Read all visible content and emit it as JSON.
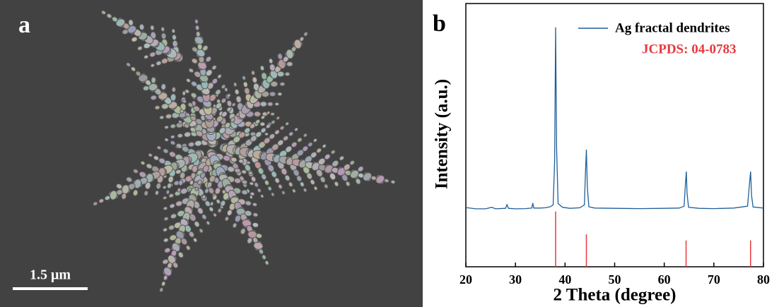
{
  "panel_a": {
    "label": "a",
    "scale_bar": "1.5 μm"
  },
  "chart_data": {
    "type": "line",
    "panel_label": "b",
    "xlabel": "2 Theta (degree)",
    "ylabel": "Intensity (a.u.)",
    "xlim": [
      20,
      80
    ],
    "xticks": [
      20,
      30,
      40,
      50,
      60,
      70,
      80
    ],
    "ylim": [
      0,
      100
    ],
    "legend": "top-right",
    "series": [
      {
        "name": "Ag fractal dendrites",
        "color": "#1f5f99",
        "x": [
          20,
          22,
          24,
          25.2,
          26,
          28,
          28.3,
          28.6,
          30,
          32,
          33.3,
          33.5,
          33.7,
          35,
          36,
          37,
          37.6,
          37.9,
          38.1,
          38.3,
          38.6,
          39.5,
          41,
          43,
          43.9,
          44.1,
          44.3,
          44.5,
          44.8,
          46,
          50,
          55,
          60,
          63,
          64,
          64.3,
          64.45,
          64.6,
          64.9,
          67,
          70,
          74,
          76.8,
          77.2,
          77.4,
          77.6,
          77.9,
          80
        ],
        "values": [
          22.5,
          22,
          22,
          22.6,
          22,
          22.2,
          23.6,
          22.2,
          22,
          22.1,
          22.3,
          24.2,
          22.3,
          22.3,
          22.4,
          22.8,
          23.5,
          40,
          91,
          45,
          24,
          22.6,
          22.2,
          22.4,
          23.5,
          35,
          44.5,
          30,
          22.8,
          22.3,
          22.2,
          22.1,
          22.2,
          22.3,
          23,
          32,
          36.2,
          28,
          22.6,
          22.2,
          22.1,
          22.3,
          23,
          32,
          36.2,
          27,
          22.7,
          22.3
        ]
      }
    ],
    "reference": {
      "name": "JCPDS: 04-0783",
      "color": "#e8383d",
      "x": [
        38.1,
        44.3,
        64.4,
        77.4
      ],
      "values": [
        21,
        12.3,
        10,
        10
      ]
    }
  }
}
